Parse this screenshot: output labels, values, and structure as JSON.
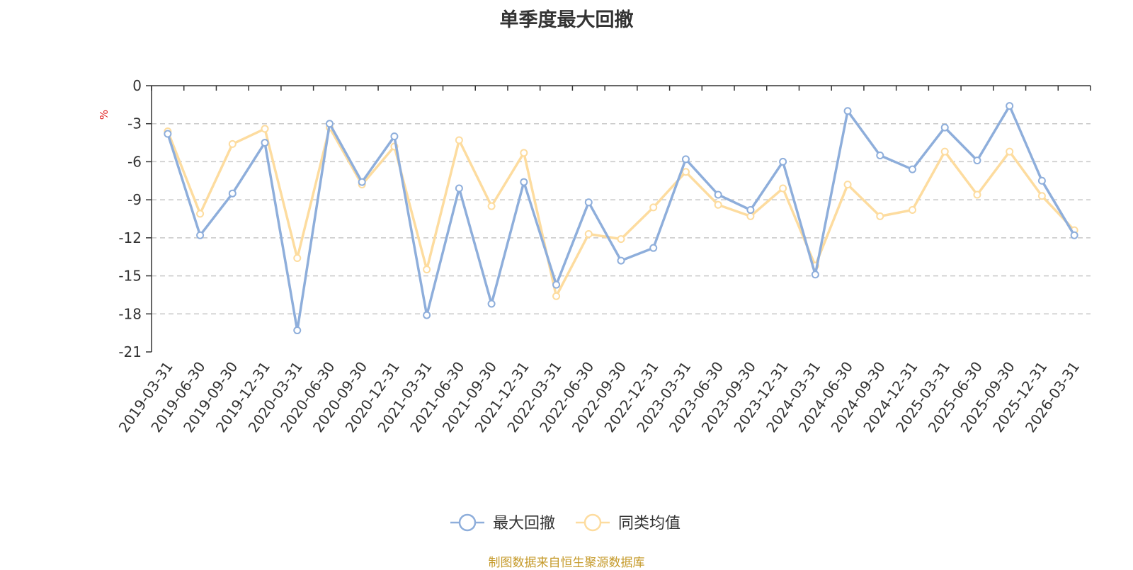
{
  "footer": {
    "source": "制图数据来自恒生聚源数据库"
  },
  "chart_data": {
    "type": "line",
    "title": "单季度最大回撤",
    "ylabel": "%",
    "ylim": [
      -21,
      0
    ],
    "yticks": [
      0,
      -3,
      -6,
      -9,
      -12,
      -15,
      -18,
      -21
    ],
    "grid": true,
    "legend_position": "bottom-center",
    "categories": [
      "2019-03-31",
      "2019-06-30",
      "2019-09-30",
      "2019-12-31",
      "2020-03-31",
      "2020-06-30",
      "2020-09-30",
      "2020-12-31",
      "2021-03-31",
      "2021-06-30",
      "2021-09-30",
      "2021-12-31",
      "2022-03-31",
      "2022-06-30",
      "2022-09-30",
      "2022-12-31",
      "2023-03-31",
      "2023-06-30",
      "2023-09-30",
      "2023-12-31",
      "2024-03-31",
      "2024-06-30",
      "2024-09-30",
      "2024-12-31",
      "2025-03-31",
      "2025-06-30",
      "2025-09-30",
      "2025-12-31",
      "2026-03-31"
    ],
    "series": [
      {
        "name": "最大回撤",
        "color": "#8eaedb",
        "values": [
          -3.8,
          -11.8,
          -8.5,
          -4.5,
          -19.3,
          -3.0,
          -7.6,
          -4.0,
          -18.1,
          -8.1,
          -17.2,
          -7.6,
          -15.7,
          -9.2,
          -13.8,
          -12.8,
          -5.8,
          -8.6,
          -9.8,
          -6.0,
          -14.9,
          -2.0,
          -5.5,
          -6.6,
          -3.3,
          -5.9,
          -1.6,
          -7.5,
          -11.8
        ]
      },
      {
        "name": "同类均值",
        "color": "#fddc9f",
        "values": [
          -3.6,
          -10.1,
          -4.6,
          -3.4,
          -13.6,
          -3.3,
          -7.8,
          -4.8,
          -14.5,
          -4.3,
          -9.5,
          -5.3,
          -16.6,
          -11.7,
          -12.1,
          -9.6,
          -6.8,
          -9.4,
          -10.3,
          -8.1,
          -14.2,
          -7.8,
          -10.3,
          -9.8,
          -5.2,
          -8.6,
          -5.2,
          -8.7,
          -11.4
        ]
      }
    ]
  }
}
